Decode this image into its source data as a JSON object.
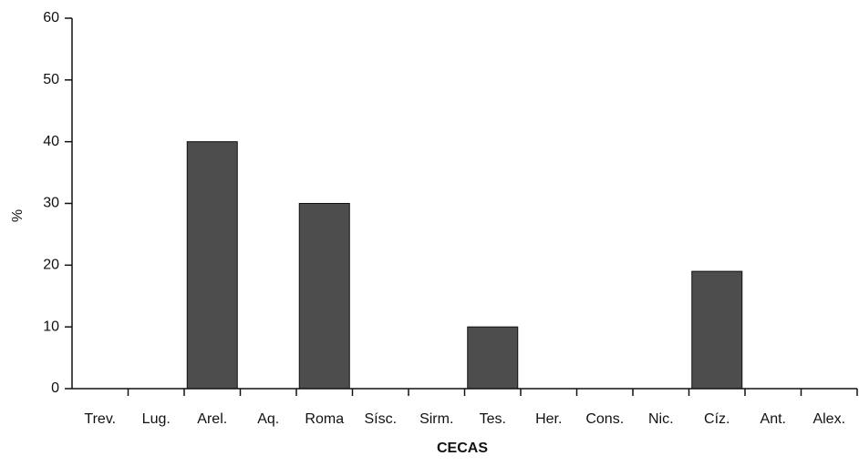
{
  "chart_data": {
    "type": "bar",
    "x_label": "CECAS",
    "y_label": "%",
    "categories": [
      "Trev.",
      "Lug.",
      "Arel.",
      "Aq.",
      "Roma",
      "Sísc.",
      "Sirm.",
      "Tes.",
      "Her.",
      "Cons.",
      "Nic.",
      "Cíz.",
      "Ant.",
      "Alex."
    ],
    "values": [
      0,
      0,
      40,
      0,
      30,
      0,
      0,
      10,
      0,
      0,
      0,
      19,
      0,
      0
    ],
    "color": "#4d4d4d",
    "ylim": [
      0,
      60
    ],
    "yticks": [
      0,
      10,
      20,
      30,
      40,
      50,
      60
    ],
    "grid": false
  }
}
